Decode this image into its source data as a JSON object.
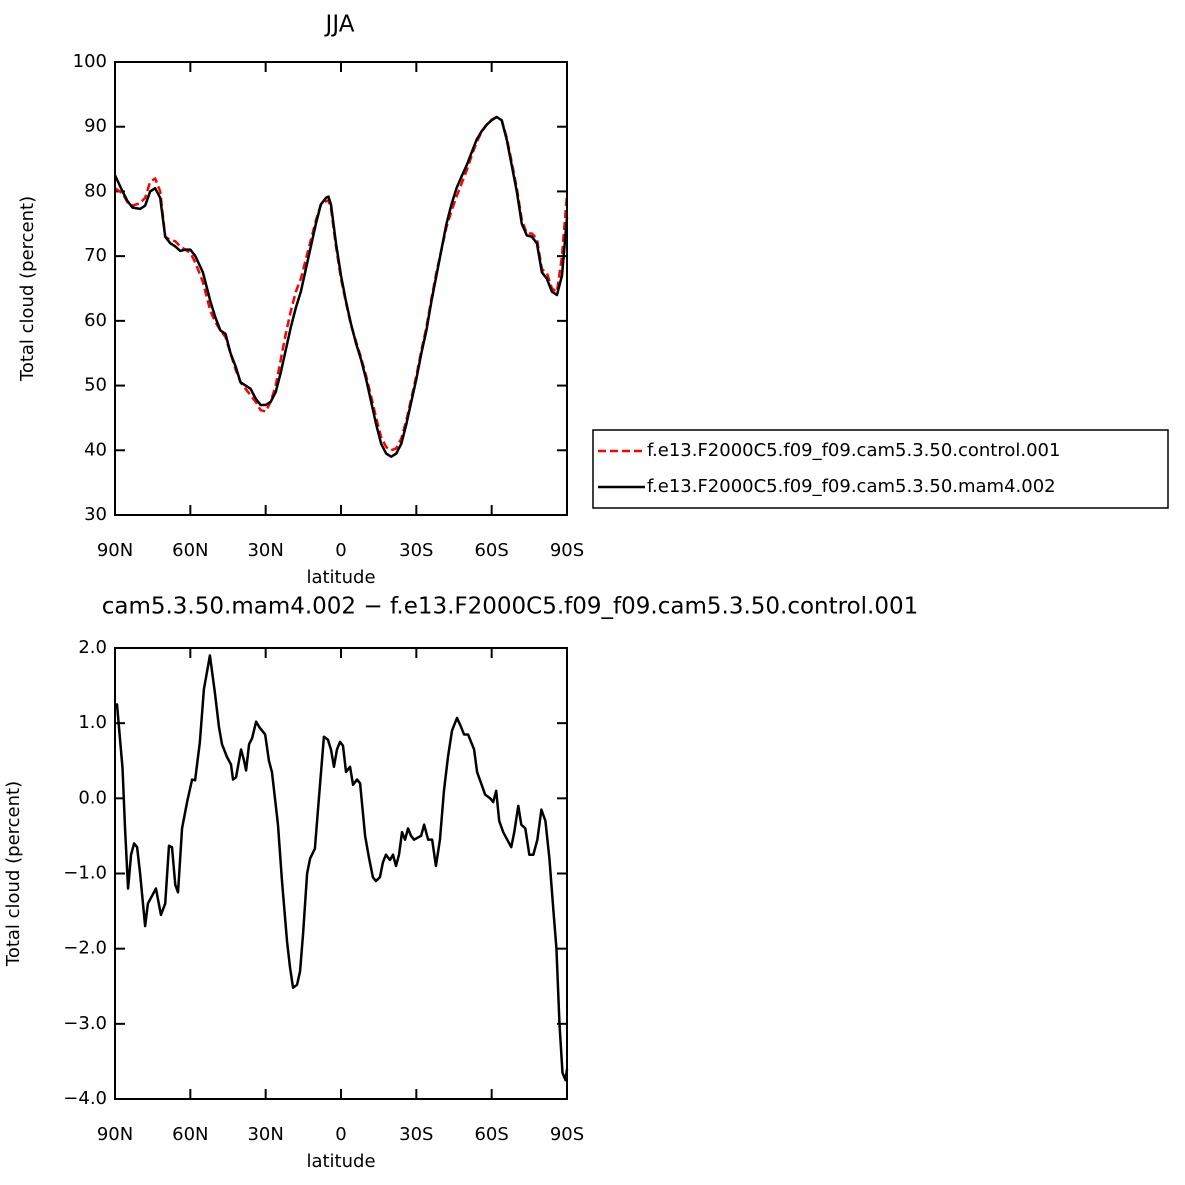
{
  "chart_data": [
    {
      "type": "line",
      "title": "JJA",
      "xlabel": "latitude",
      "ylabel": "Total cloud (percent)",
      "x": [
        90,
        87,
        85,
        83,
        80,
        78,
        76,
        74,
        72,
        70,
        68,
        66,
        64,
        62,
        60,
        58,
        55,
        52,
        50,
        48,
        46,
        44,
        42,
        40,
        38,
        36,
        34,
        32,
        30,
        28,
        26,
        24,
        22,
        20,
        18,
        16,
        14,
        12,
        10,
        8,
        6,
        5,
        4,
        2,
        0,
        -2,
        -4,
        -6,
        -8,
        -10,
        -12,
        -14,
        -16,
        -18,
        -20,
        -22,
        -24,
        -26,
        -28,
        -30,
        -32,
        -34,
        -36,
        -38,
        -40,
        -42,
        -44,
        -46,
        -48,
        -50,
        -52,
        -54,
        -56,
        -58,
        -60,
        -62,
        -64,
        -66,
        -68,
        -70,
        -72,
        -74,
        -76,
        -78,
        -80,
        -82,
        -84,
        -86,
        -88,
        -90
      ],
      "series": [
        {
          "name": "f.e13.F2000C5.f09_f09.cam5.3.50.control.001",
          "color": "#ff0000",
          "style": "dashed",
          "values": [
            80.5,
            79.7,
            78.3,
            77.8,
            78.2,
            79,
            81.5,
            82,
            80,
            73,
            72.5,
            72.3,
            71.5,
            71,
            70.5,
            69,
            66,
            61.5,
            59.8,
            58.5,
            57.5,
            55,
            52.5,
            50.5,
            49.5,
            48.5,
            47.5,
            46.2,
            46,
            47.5,
            50,
            54,
            58,
            61.5,
            64.5,
            66.5,
            69.5,
            72.5,
            75.5,
            78,
            78.5,
            78.6,
            77.4,
            71.5,
            66.5,
            62.8,
            59.3,
            56.8,
            54.3,
            51.5,
            48.3,
            45,
            42,
            40.5,
            40,
            40.3,
            41.8,
            44.6,
            48,
            51.5,
            55.4,
            59,
            63.4,
            67.5,
            71,
            74.5,
            77,
            79.2,
            81.2,
            83.2,
            85.5,
            87.6,
            89.2,
            90.3,
            91.1,
            91.5,
            91,
            88.3,
            84.5,
            80.5,
            75.6,
            73.5,
            73.5,
            72.7,
            68,
            67.4,
            65,
            64.5,
            70,
            79.5
          ]
        },
        {
          "name": "f.e13.F2000C5.f09_f09.cam5.3.50.mam4.002",
          "color": "#000000",
          "style": "solid",
          "values": [
            82.5,
            80,
            78.5,
            77.5,
            77.3,
            77.8,
            80,
            80.5,
            79,
            73,
            72,
            71.5,
            70.8,
            71,
            71,
            70,
            67.5,
            63,
            60.5,
            58.5,
            58,
            55,
            53,
            50.5,
            50,
            49.5,
            48,
            47,
            47,
            47.5,
            49,
            52,
            55.5,
            59,
            62,
            64.5,
            68,
            71.5,
            75,
            78,
            79,
            79.2,
            78,
            72,
            67,
            63,
            59.5,
            56.5,
            54,
            51,
            47.5,
            44,
            41,
            39.5,
            39,
            39.5,
            41,
            44,
            47.5,
            51,
            55,
            58.5,
            63,
            67,
            71,
            75,
            78,
            80.5,
            82.3,
            84,
            86,
            88,
            89.3,
            90.3,
            91,
            91.5,
            91,
            88,
            84,
            80,
            75,
            73.2,
            73,
            72,
            67.5,
            66.5,
            64.5,
            64,
            67,
            76
          ]
        }
      ],
      "xlim": [
        90,
        -90
      ],
      "xticks": [
        {
          "value": 90,
          "label": "90N"
        },
        {
          "value": 60,
          "label": "60N"
        },
        {
          "value": 30,
          "label": "30N"
        },
        0,
        {
          "value": -30,
          "label": "30S"
        },
        {
          "value": -60,
          "label": "60S"
        },
        {
          "value": -90,
          "label": "90S"
        }
      ],
      "ylim": [
        30,
        100
      ],
      "yticks": [
        30,
        40,
        50,
        60,
        70,
        80,
        90,
        100
      ],
      "legend": "outside-right"
    },
    {
      "type": "line",
      "title": "cam5.3.50.mam4.002 − f.e13.F2000C5.f09_f09.cam5.3.50.control.001",
      "xlabel": "latitude",
      "ylabel": "Total cloud (percent)",
      "x": [
        90,
        89.2,
        87,
        86,
        84.8,
        83.6,
        82.4,
        81.2,
        80,
        78,
        76.9,
        75.3,
        73.7,
        71.7,
        70,
        68.5,
        67.3,
        66,
        64.9,
        63.3,
        61.3,
        59.3,
        58.1,
        56.2,
        54.6,
        52.2,
        50.2,
        48.6,
        47.4,
        45.4,
        43.8,
        43,
        41.8,
        39.8,
        38.6,
        37.8,
        36.6,
        35.4,
        33.8,
        32.6,
        31.4,
        30.2,
        28.7,
        27.5,
        25.1,
        23.5,
        21.5,
        20.3,
        19.1,
        17.5,
        16.3,
        15.1,
        13.5,
        12.3,
        10.4,
        8.8,
        6.8,
        5.2,
        4,
        2.8,
        1.6,
        0.4,
        -0.8,
        -2,
        -3.6,
        -4.8,
        -6.4,
        -7.6,
        -9.6,
        -11.2,
        -12.7,
        -13.9,
        -15.5,
        -16.7,
        -17.9,
        -19.5,
        -20.7,
        -21.9,
        -23.1,
        -24.3,
        -25.5,
        -26.7,
        -27.9,
        -29.1,
        -30.7,
        -31.9,
        -33.1,
        -34.7,
        -36.3,
        -37.8,
        -39.4,
        -41,
        -42.6,
        -44.2,
        -46.2,
        -47.8,
        -49,
        -50.6,
        -51.8,
        -53,
        -54.2,
        -55.8,
        -57.4,
        -59.4,
        -60.6,
        -61.8,
        -63,
        -64.6,
        -66.2,
        -67.8,
        -69,
        -70.6,
        -71.8,
        -73.4,
        -75,
        -76.6,
        -78.2,
        -79.8,
        -81.4,
        -83,
        -84.6,
        -85.8,
        -87,
        -88.2,
        -89.4,
        -90
      ],
      "values": [
        1.24,
        1.25,
        0.4,
        -0.4,
        -1.2,
        -0.75,
        -0.6,
        -0.65,
        -1.0,
        -1.7,
        -1.4,
        -1.3,
        -1.2,
        -1.55,
        -1.4,
        -0.63,
        -0.65,
        -1.15,
        -1.25,
        -0.4,
        -0.05,
        0.25,
        0.24,
        0.75,
        1.45,
        1.9,
        1.4,
        0.95,
        0.72,
        0.55,
        0.45,
        0.25,
        0.28,
        0.65,
        0.5,
        0.37,
        0.72,
        0.8,
        1.02,
        0.95,
        0.9,
        0.85,
        0.5,
        0.35,
        -0.35,
        -1.1,
        -1.9,
        -2.25,
        -2.52,
        -2.48,
        -2.3,
        -1.8,
        -1.0,
        -0.8,
        -0.67,
        0.0,
        0.82,
        0.78,
        0.65,
        0.42,
        0.65,
        0.75,
        0.7,
        0.35,
        0.42,
        0.18,
        0.25,
        0.2,
        -0.5,
        -0.8,
        -1.05,
        -1.1,
        -1.05,
        -0.85,
        -0.75,
        -0.82,
        -0.75,
        -0.9,
        -0.75,
        -0.45,
        -0.55,
        -0.4,
        -0.5,
        -0.55,
        -0.52,
        -0.5,
        -0.35,
        -0.55,
        -0.55,
        -0.9,
        -0.55,
        0.1,
        0.55,
        0.9,
        1.07,
        0.95,
        0.85,
        0.85,
        0.75,
        0.65,
        0.35,
        0.2,
        0.05,
        0.0,
        -0.05,
        0.1,
        -0.3,
        -0.45,
        -0.55,
        -0.65,
        -0.45,
        -0.1,
        -0.35,
        -0.4,
        -0.75,
        -0.75,
        -0.55,
        -0.15,
        -0.3,
        -0.8,
        -1.5,
        -2.0,
        -3.0,
        -3.65,
        -3.75,
        -3.6
      ],
      "color": "#000000",
      "style": "solid",
      "xlim": [
        90,
        -90
      ],
      "xticks": [
        {
          "value": 90,
          "label": "90N"
        },
        {
          "value": 60,
          "label": "60N"
        },
        {
          "value": 30,
          "label": "30N"
        },
        0,
        {
          "value": -30,
          "label": "30S"
        },
        {
          "value": -60,
          "label": "60S"
        },
        {
          "value": -90,
          "label": "90S"
        }
      ],
      "ylim": [
        -4,
        2
      ],
      "yticks": [
        {
          "value": 2,
          "label": "2.0"
        },
        {
          "value": 1,
          "label": "1.0"
        },
        {
          "value": 0,
          "label": "0.0"
        },
        {
          "value": -1,
          "label": "−1.0"
        },
        {
          "value": -2,
          "label": "−2.0"
        },
        {
          "value": -3,
          "label": "−3.0"
        },
        {
          "value": -4,
          "label": "−4.0"
        }
      ]
    }
  ]
}
